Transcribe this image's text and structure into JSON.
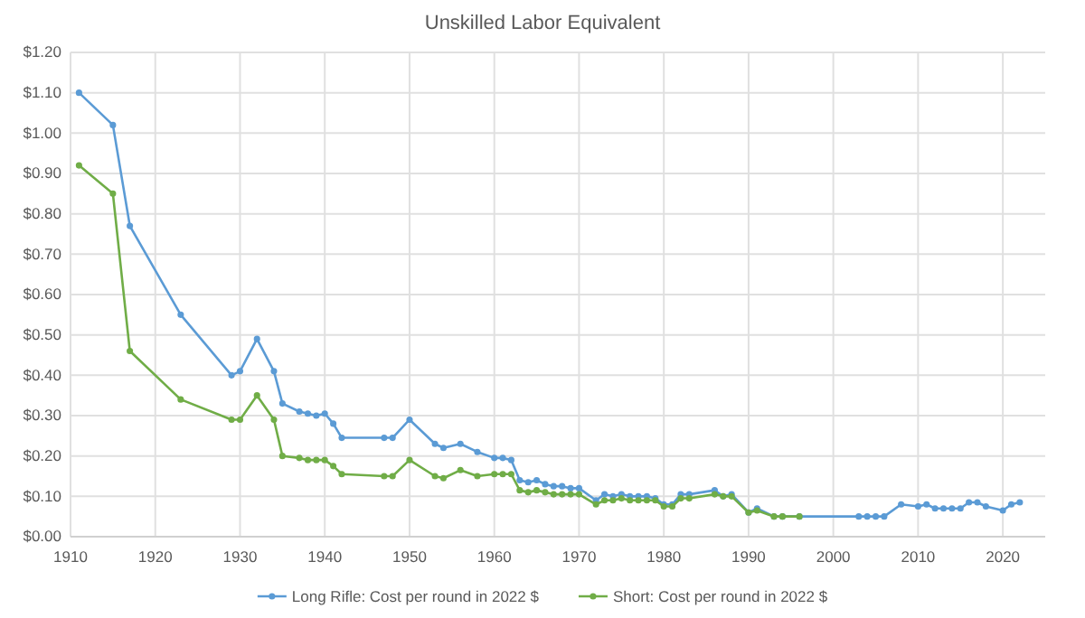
{
  "chart_data": {
    "type": "line",
    "title": "Unskilled Labor Equivalent",
    "xlim": [
      1910,
      2025
    ],
    "xticks": [
      1910,
      1920,
      1930,
      1940,
      1950,
      1960,
      1970,
      1980,
      1990,
      2000,
      2010,
      2020
    ],
    "ylim": [
      0,
      1.2
    ],
    "yticks": [
      {
        "value": 0,
        "label": "$0.00"
      },
      {
        "value": 0.1,
        "label": "$0.10"
      },
      {
        "value": 0.2,
        "label": "$0.20"
      },
      {
        "value": 0.3,
        "label": "$0.30"
      },
      {
        "value": 0.4,
        "label": "$0.40"
      },
      {
        "value": 0.5,
        "label": "$0.50"
      },
      {
        "value": 0.6,
        "label": "$0.60"
      },
      {
        "value": 0.7,
        "label": "$0.70"
      },
      {
        "value": 0.8,
        "label": "$0.80"
      },
      {
        "value": 0.9,
        "label": "$0.90"
      },
      {
        "value": 1.0,
        "label": "$1.00"
      },
      {
        "value": 1.1,
        "label": "$1.10"
      },
      {
        "value": 1.2,
        "label": "$1.20"
      }
    ],
    "grid": true,
    "legend": "bottom",
    "marker": "circle",
    "line_style": "solid",
    "series": [
      {
        "name": "Long Rifle: Cost per round in 2022 $",
        "color": "#5b9bd5",
        "x": [
          1911,
          1915,
          1917,
          1923,
          1929,
          1930,
          1932,
          1934,
          1935,
          1937,
          1938,
          1939,
          1940,
          1941,
          1942,
          1947,
          1948,
          1950,
          1953,
          1954,
          1956,
          1958,
          1960,
          1961,
          1962,
          1963,
          1964,
          1965,
          1966,
          1967,
          1968,
          1969,
          1970,
          1972,
          1973,
          1974,
          1975,
          1976,
          1977,
          1978,
          1979,
          1980,
          1981,
          1982,
          1983,
          1986,
          1987,
          1988,
          1990,
          1991,
          1993,
          1994,
          1996,
          2003,
          2004,
          2005,
          2006,
          2008,
          2010,
          2011,
          2012,
          2013,
          2014,
          2015,
          2016,
          2017,
          2018,
          2020,
          2021,
          2022
        ],
        "values": [
          1.1,
          1.02,
          0.77,
          0.55,
          0.4,
          0.41,
          0.49,
          0.41,
          0.33,
          0.31,
          0.305,
          0.3,
          0.305,
          0.28,
          0.245,
          0.245,
          0.245,
          0.29,
          0.23,
          0.22,
          0.23,
          0.21,
          0.195,
          0.195,
          0.19,
          0.14,
          0.135,
          0.14,
          0.13,
          0.125,
          0.125,
          0.12,
          0.12,
          0.09,
          0.105,
          0.1,
          0.105,
          0.1,
          0.1,
          0.1,
          0.095,
          0.08,
          0.08,
          0.105,
          0.105,
          0.115,
          0.1,
          0.105,
          0.06,
          0.07,
          0.05,
          0.05,
          0.05,
          0.05,
          0.05,
          0.05,
          0.05,
          0.08,
          0.075,
          0.08,
          0.07,
          0.07,
          0.07,
          0.07,
          0.085,
          0.085,
          0.075,
          0.065,
          0.08,
          0.085
        ]
      },
      {
        "name": "Short: Cost per round in 2022 $",
        "color": "#70ad47",
        "x": [
          1911,
          1915,
          1917,
          1923,
          1929,
          1930,
          1932,
          1934,
          1935,
          1937,
          1938,
          1939,
          1940,
          1941,
          1942,
          1947,
          1948,
          1950,
          1953,
          1954,
          1956,
          1958,
          1960,
          1961,
          1962,
          1963,
          1964,
          1965,
          1966,
          1967,
          1968,
          1969,
          1970,
          1972,
          1973,
          1974,
          1975,
          1976,
          1977,
          1978,
          1979,
          1980,
          1981,
          1982,
          1983,
          1986,
          1987,
          1988,
          1990,
          1991,
          1993,
          1994,
          1996
        ],
        "values": [
          0.92,
          0.85,
          0.46,
          0.34,
          0.29,
          0.29,
          0.35,
          0.29,
          0.2,
          0.195,
          0.19,
          0.19,
          0.19,
          0.175,
          0.155,
          0.15,
          0.15,
          0.19,
          0.15,
          0.145,
          0.165,
          0.15,
          0.155,
          0.155,
          0.155,
          0.115,
          0.11,
          0.115,
          0.11,
          0.105,
          0.105,
          0.105,
          0.105,
          0.08,
          0.09,
          0.09,
          0.095,
          0.09,
          0.09,
          0.09,
          0.09,
          0.075,
          0.075,
          0.095,
          0.095,
          0.105,
          0.1,
          0.1,
          0.06,
          0.065,
          0.05,
          0.05,
          0.05
        ]
      }
    ]
  }
}
